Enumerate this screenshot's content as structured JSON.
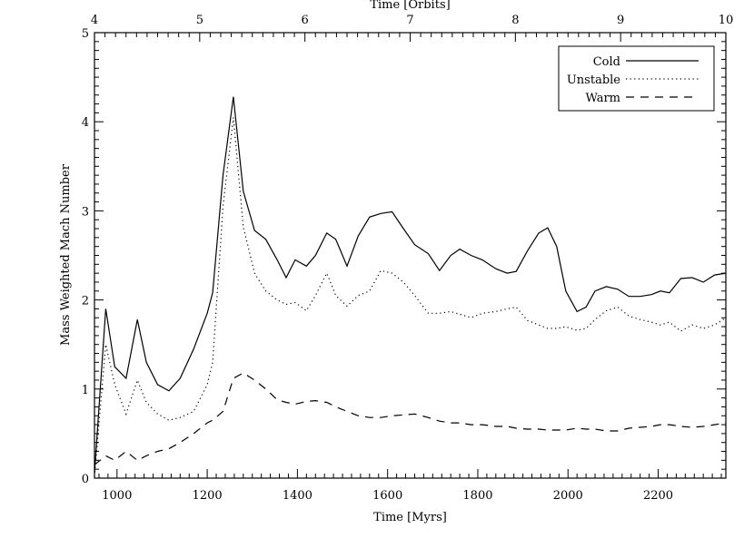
{
  "chart_data": {
    "type": "line",
    "title": "",
    "xlabel": "Time [Myrs]",
    "ylabel": "Mass Weighted Mach Number",
    "top_xlabel": "Time [Orbits]",
    "xlim": [
      950,
      2350
    ],
    "ylim": [
      0,
      5
    ],
    "top_xlim": [
      4,
      10
    ],
    "x_ticks": [
      1000,
      1200,
      1400,
      1600,
      1800,
      2000,
      2200
    ],
    "y_ticks": [
      0,
      1,
      2,
      3,
      4,
      5
    ],
    "top_ticks": [
      4,
      5,
      6,
      7,
      8,
      9,
      10
    ],
    "legend_position": "top-right",
    "series": [
      {
        "name": "Cold",
        "style": "solid",
        "x": [
          950,
          975,
          995,
          1020,
          1045,
          1065,
          1090,
          1115,
          1140,
          1170,
          1200,
          1212,
          1235,
          1258,
          1280,
          1305,
          1330,
          1355,
          1375,
          1395,
          1420,
          1440,
          1465,
          1485,
          1510,
          1535,
          1560,
          1585,
          1610,
          1635,
          1660,
          1690,
          1715,
          1740,
          1760,
          1785,
          1810,
          1840,
          1865,
          1885,
          1910,
          1935,
          1955,
          1975,
          1995,
          2020,
          2040,
          2060,
          2085,
          2110,
          2135,
          2160,
          2185,
          2205,
          2225,
          2250,
          2275,
          2300,
          2325,
          2350
        ],
        "values": [
          0.05,
          1.9,
          1.25,
          1.12,
          1.78,
          1.3,
          1.05,
          0.98,
          1.12,
          1.45,
          1.85,
          2.08,
          3.4,
          4.28,
          3.22,
          2.78,
          2.68,
          2.45,
          2.25,
          2.45,
          2.38,
          2.5,
          2.75,
          2.68,
          2.38,
          2.72,
          2.93,
          2.97,
          2.99,
          2.8,
          2.62,
          2.52,
          2.33,
          2.5,
          2.57,
          2.5,
          2.45,
          2.35,
          2.3,
          2.32,
          2.55,
          2.75,
          2.81,
          2.6,
          2.1,
          1.87,
          1.92,
          2.1,
          2.15,
          2.12,
          2.04,
          2.04,
          2.06,
          2.1,
          2.08,
          2.24,
          2.25,
          2.2,
          2.28,
          2.3
        ]
      },
      {
        "name": "Unstable",
        "style": "dotted",
        "x": [
          950,
          975,
          995,
          1020,
          1045,
          1065,
          1090,
          1115,
          1140,
          1170,
          1200,
          1212,
          1235,
          1258,
          1280,
          1305,
          1330,
          1355,
          1375,
          1395,
          1420,
          1440,
          1465,
          1485,
          1510,
          1535,
          1560,
          1585,
          1610,
          1635,
          1660,
          1690,
          1715,
          1740,
          1760,
          1785,
          1810,
          1840,
          1865,
          1885,
          1910,
          1935,
          1955,
          1975,
          1995,
          2020,
          2040,
          2060,
          2085,
          2110,
          2135,
          2160,
          2185,
          2205,
          2225,
          2250,
          2275,
          2300,
          2325,
          2350
        ],
        "values": [
          0.02,
          1.5,
          1.05,
          0.72,
          1.1,
          0.85,
          0.72,
          0.65,
          0.68,
          0.75,
          1.05,
          1.3,
          3.05,
          4.05,
          2.82,
          2.3,
          2.1,
          2.0,
          1.95,
          1.97,
          1.88,
          2.05,
          2.3,
          2.05,
          1.93,
          2.05,
          2.1,
          2.33,
          2.3,
          2.2,
          2.05,
          1.85,
          1.85,
          1.87,
          1.84,
          1.8,
          1.85,
          1.87,
          1.9,
          1.92,
          1.77,
          1.72,
          1.68,
          1.68,
          1.7,
          1.66,
          1.68,
          1.78,
          1.88,
          1.92,
          1.82,
          1.78,
          1.75,
          1.72,
          1.75,
          1.65,
          1.72,
          1.68,
          1.72,
          1.8
        ]
      },
      {
        "name": "Warm",
        "style": "dashed",
        "x": [
          950,
          975,
          995,
          1020,
          1045,
          1065,
          1090,
          1115,
          1140,
          1170,
          1200,
          1212,
          1235,
          1258,
          1280,
          1305,
          1330,
          1355,
          1375,
          1395,
          1420,
          1440,
          1465,
          1485,
          1510,
          1535,
          1560,
          1585,
          1610,
          1635,
          1660,
          1690,
          1715,
          1740,
          1760,
          1785,
          1810,
          1840,
          1865,
          1885,
          1910,
          1935,
          1955,
          1975,
          1995,
          2020,
          2040,
          2060,
          2085,
          2110,
          2135,
          2160,
          2185,
          2205,
          2225,
          2250,
          2275,
          2300,
          2325,
          2350
        ],
        "values": [
          0.15,
          0.25,
          0.2,
          0.3,
          0.2,
          0.25,
          0.3,
          0.33,
          0.4,
          0.5,
          0.62,
          0.65,
          0.75,
          1.12,
          1.18,
          1.1,
          1.0,
          0.88,
          0.85,
          0.83,
          0.86,
          0.87,
          0.85,
          0.8,
          0.75,
          0.7,
          0.68,
          0.68,
          0.7,
          0.71,
          0.72,
          0.68,
          0.64,
          0.62,
          0.62,
          0.6,
          0.6,
          0.58,
          0.58,
          0.56,
          0.55,
          0.55,
          0.54,
          0.54,
          0.54,
          0.56,
          0.55,
          0.55,
          0.53,
          0.53,
          0.56,
          0.57,
          0.58,
          0.6,
          0.6,
          0.58,
          0.57,
          0.58,
          0.6,
          0.62
        ]
      }
    ]
  }
}
